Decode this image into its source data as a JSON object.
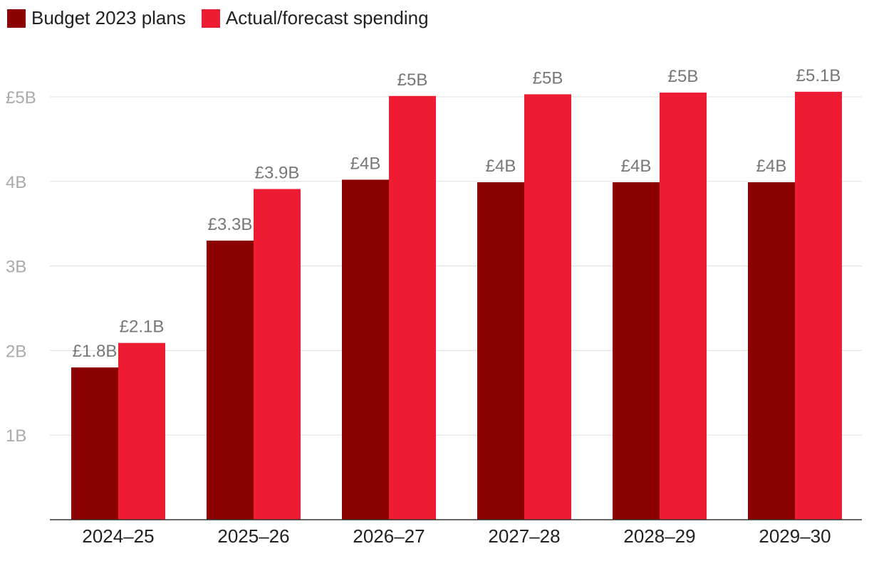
{
  "chart_data": {
    "type": "bar",
    "title": "",
    "xlabel": "",
    "ylabel": "",
    "categories": [
      "2024–25",
      "2025–26",
      "2026–27",
      "2027–28",
      "2028–29",
      "2029–30"
    ],
    "series": [
      {
        "name": "Budget 2023 plans",
        "color": "#8b0000",
        "values": [
          1.8,
          3.3,
          4.02,
          3.99,
          3.99,
          3.99
        ],
        "labels": [
          "£1.8B",
          "£3.3B",
          "£4B",
          "£4B",
          "£4B",
          "£4B"
        ]
      },
      {
        "name": "Actual/forecast spending",
        "color": "#ed1c33",
        "values": [
          2.09,
          3.91,
          5.01,
          5.03,
          5.05,
          5.06
        ],
        "labels": [
          "£2.1B",
          "£3.9B",
          "£5B",
          "£5B",
          "£5B",
          "£5.1B"
        ]
      }
    ],
    "ylim": [
      0,
      5
    ],
    "yticks": [
      1,
      2,
      3,
      4,
      5
    ],
    "ytick_labels": [
      "1B",
      "2B",
      "3B",
      "4B",
      "£5B"
    ],
    "grid": true,
    "legend": "top-left"
  }
}
